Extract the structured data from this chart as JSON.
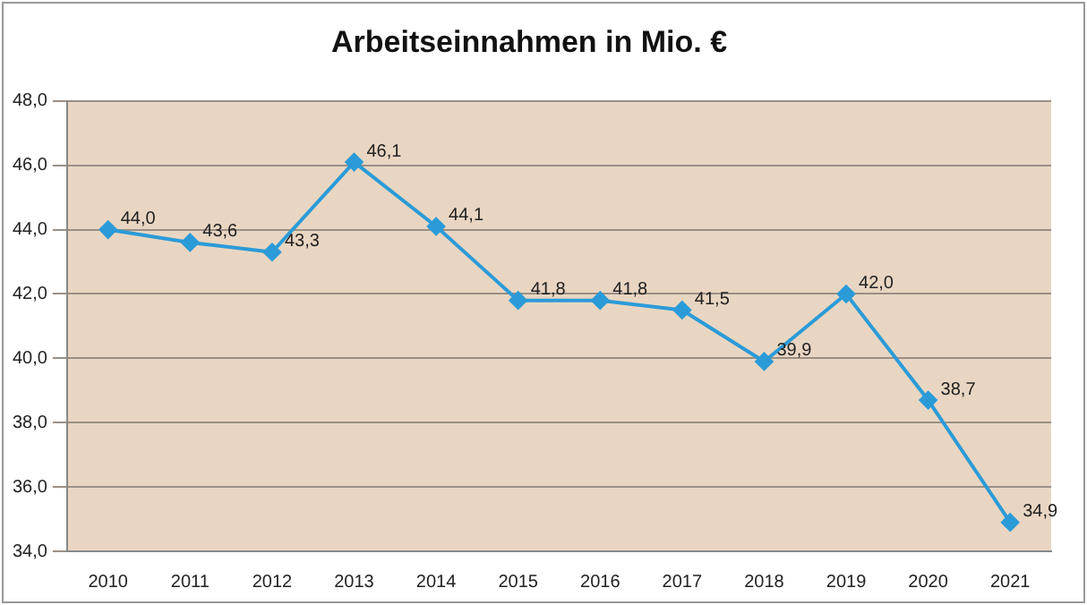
{
  "chart_data": {
    "type": "line",
    "title": "Arbeitseinnahmen in Mio. €",
    "categories": [
      "2010",
      "2011",
      "2012",
      "2013",
      "2014",
      "2015",
      "2016",
      "2017",
      "2018",
      "2019",
      "2020",
      "2021"
    ],
    "series": [
      {
        "color": "#2b9bd8",
        "values": [
          44.0,
          43.6,
          43.3,
          46.1,
          44.1,
          41.8,
          41.8,
          41.5,
          39.9,
          42.0,
          38.7,
          34.9
        ],
        "value_labels": [
          "44,0",
          "43,6",
          "43,3",
          "46,1",
          "44,1",
          "41,8",
          "41,8",
          "41,5",
          "39,9",
          "42,0",
          "38,7",
          "34,9"
        ]
      }
    ],
    "ylim": [
      34,
      48
    ],
    "yticks": [
      {
        "value": 34,
        "label": "34,0"
      },
      {
        "value": 36,
        "label": "36,0"
      },
      {
        "value": 38,
        "label": "38,0"
      },
      {
        "value": 40,
        "label": "40,0"
      },
      {
        "value": 42,
        "label": "42,0"
      },
      {
        "value": 44,
        "label": "44,0"
      },
      {
        "value": 46,
        "label": "46,0"
      },
      {
        "value": 48,
        "label": "48,0"
      }
    ],
    "grid": "y",
    "legend": false,
    "marker": "diamond",
    "line_style": "solid"
  }
}
